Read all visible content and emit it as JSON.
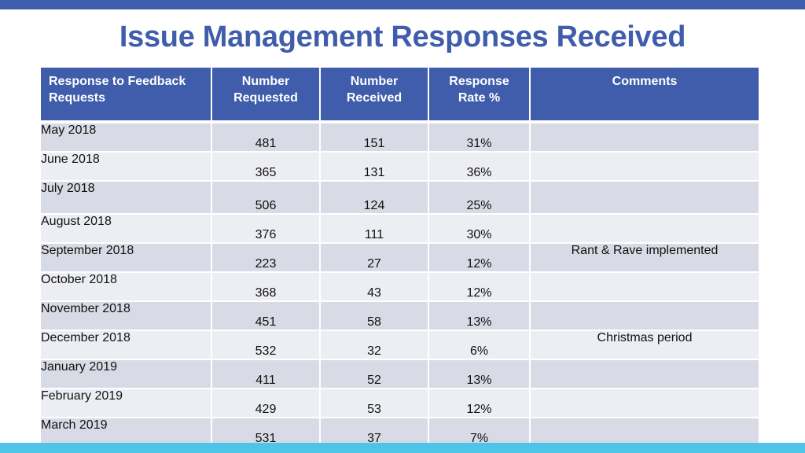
{
  "title": "Issue Management Responses Received",
  "table": {
    "headers": {
      "month_line1": "Response to Feedback",
      "month_line2": "Requests",
      "requested_line1": "Number",
      "requested_line2": "Requested",
      "received_line1": "Number",
      "received_line2": "Received",
      "rate_line1": "Response",
      "rate_line2": "Rate %",
      "comments": "Comments"
    },
    "rows": [
      {
        "month": "May 2018",
        "requested": "481",
        "received": "151",
        "rate": "31%",
        "comment": ""
      },
      {
        "month": "June 2018",
        "requested": "365",
        "received": "131",
        "rate": "36%",
        "comment": ""
      },
      {
        "month": "July 2018",
        "requested": "506",
        "received": "124",
        "rate": "25%",
        "comment": ""
      },
      {
        "month": "August 2018",
        "requested": "376",
        "received": "111",
        "rate": "30%",
        "comment": ""
      },
      {
        "month": "September 2018",
        "requested": "223",
        "received": "27",
        "rate": "12%",
        "comment": "Rant & Rave implemented"
      },
      {
        "month": "October 2018",
        "requested": "368",
        "received": "43",
        "rate": "12%",
        "comment": ""
      },
      {
        "month": "November 2018",
        "requested": "451",
        "received": "58",
        "rate": "13%",
        "comment": ""
      },
      {
        "month": "December 2018",
        "requested": "532",
        "received": "32",
        "rate": "6%",
        "comment": "Christmas period"
      },
      {
        "month": "January 2019",
        "requested": "411",
        "received": "52",
        "rate": "13%",
        "comment": ""
      },
      {
        "month": "February 2019",
        "requested": "429",
        "received": "53",
        "rate": "12%",
        "comment": ""
      },
      {
        "month": "March 2019",
        "requested": "531",
        "received": "37",
        "rate": "7%",
        "comment": ""
      }
    ]
  }
}
